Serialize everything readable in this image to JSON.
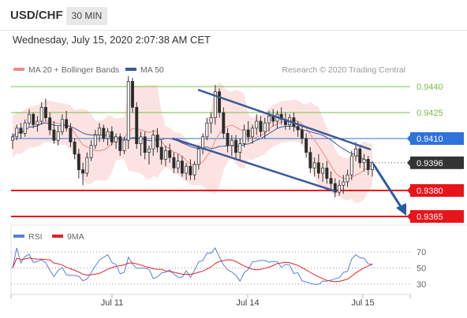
{
  "header": {
    "symbol": "USD/CHF",
    "timeframe": "30 MIN"
  },
  "date_label": "Wednesday, July 15, 2020 2:07:38 AM CET",
  "legend": {
    "ma20": "MA 20 + Bollinger Bands",
    "ma50": "MA 50",
    "credit": "Research © 2020 Trading Central"
  },
  "rsi_legend": {
    "rsi": "RSI",
    "ma": "9MA"
  },
  "colors": {
    "support": "#e8141c",
    "resistance": "#7dbb4a",
    "pivot": "#2e73d9",
    "price_box": "#333333",
    "trendline": "#3b5a9a",
    "ma20": "#f08a86",
    "ma50": "#3b5a9a",
    "rsi": "#5a7fd6",
    "rsi_ma": "#e0222b",
    "up_candle": "#4a4a4a",
    "down_candle": "#2a2a2a"
  },
  "chart_data": [
    {
      "type": "candlestick",
      "title": "USD/CHF",
      "timeframe": "30 MIN",
      "x_ticks": [
        "Jul 11",
        "Jul 14",
        "Jul 15"
      ],
      "ylim": [
        0.93595,
        0.94485
      ],
      "levels": [
        {
          "name": "resistance",
          "value": 0.944,
          "label": "0.9440"
        },
        {
          "name": "resistance",
          "value": 0.9425,
          "label": "0.9425"
        },
        {
          "name": "pivot",
          "value": 0.941,
          "label": "0.9410"
        },
        {
          "name": "current",
          "value": 0.9396,
          "label": "0.9396"
        },
        {
          "name": "support",
          "value": 0.938,
          "label": "0.9380"
        },
        {
          "name": "support",
          "value": 0.9365,
          "label": "0.9365"
        }
      ],
      "ohlc_approx": [
        [
          0.9409,
          0.9413,
          0.9404,
          0.9411
        ],
        [
          0.9411,
          0.9418,
          0.9409,
          0.9416
        ],
        [
          0.9416,
          0.9419,
          0.941,
          0.9413
        ],
        [
          0.9413,
          0.9421,
          0.9411,
          0.9419
        ],
        [
          0.9419,
          0.9427,
          0.9417,
          0.9424
        ],
        [
          0.9424,
          0.9425,
          0.9416,
          0.9418
        ],
        [
          0.9418,
          0.9423,
          0.9414,
          0.942
        ],
        [
          0.942,
          0.9431,
          0.9418,
          0.9428
        ],
        [
          0.9428,
          0.9433,
          0.942,
          0.9422
        ],
        [
          0.9422,
          0.9425,
          0.9412,
          0.9415
        ],
        [
          0.9415,
          0.942,
          0.9407,
          0.9409
        ],
        [
          0.9409,
          0.9417,
          0.9406,
          0.9414
        ],
        [
          0.9414,
          0.9424,
          0.9412,
          0.9421
        ],
        [
          0.9421,
          0.9426,
          0.9414,
          0.9416
        ],
        [
          0.9416,
          0.9419,
          0.9405,
          0.9408
        ],
        [
          0.9408,
          0.941,
          0.9398,
          0.9401
        ],
        [
          0.9401,
          0.9404,
          0.9387,
          0.9392
        ],
        [
          0.9392,
          0.9396,
          0.9383,
          0.939
        ],
        [
          0.939,
          0.9402,
          0.9388,
          0.9399
        ],
        [
          0.9399,
          0.9409,
          0.9397,
          0.9406
        ],
        [
          0.9406,
          0.9415,
          0.9404,
          0.9412
        ],
        [
          0.9412,
          0.9419,
          0.9408,
          0.9416
        ],
        [
          0.9416,
          0.9418,
          0.9408,
          0.941
        ],
        [
          0.941,
          0.9416,
          0.9406,
          0.9414
        ],
        [
          0.9414,
          0.9417,
          0.9406,
          0.9408
        ],
        [
          0.9408,
          0.9413,
          0.9404,
          0.9411
        ],
        [
          0.9411,
          0.9413,
          0.94,
          0.9403
        ],
        [
          0.9403,
          0.9411,
          0.9401,
          0.9409
        ],
        [
          0.9409,
          0.9446,
          0.9404,
          0.9443
        ],
        [
          0.9443,
          0.9445,
          0.9425,
          0.9428
        ],
        [
          0.9428,
          0.9431,
          0.9404,
          0.9407
        ],
        [
          0.9407,
          0.9414,
          0.94,
          0.9411
        ],
        [
          0.9411,
          0.9414,
          0.9398,
          0.9402
        ],
        [
          0.9402,
          0.9406,
          0.9395,
          0.9404
        ],
        [
          0.9404,
          0.9415,
          0.94,
          0.9412
        ],
        [
          0.9412,
          0.9416,
          0.9402,
          0.9405
        ],
        [
          0.9405,
          0.9409,
          0.9395,
          0.9398
        ],
        [
          0.9398,
          0.9406,
          0.9394,
          0.9403
        ],
        [
          0.9403,
          0.9407,
          0.9396,
          0.9399
        ],
        [
          0.9399,
          0.9402,
          0.939,
          0.9393
        ],
        [
          0.9393,
          0.9401,
          0.939,
          0.9397
        ],
        [
          0.9397,
          0.94,
          0.9388,
          0.939
        ],
        [
          0.939,
          0.9396,
          0.9386,
          0.9394
        ],
        [
          0.9394,
          0.9398,
          0.9386,
          0.9389
        ],
        [
          0.9389,
          0.9397,
          0.9386,
          0.9395
        ],
        [
          0.9395,
          0.9406,
          0.9392,
          0.9404
        ],
        [
          0.9404,
          0.9413,
          0.9401,
          0.9411
        ],
        [
          0.9411,
          0.9422,
          0.9409,
          0.9419
        ],
        [
          0.9419,
          0.9425,
          0.9413,
          0.9422
        ],
        [
          0.9422,
          0.9441,
          0.9418,
          0.9437
        ],
        [
          0.9437,
          0.9439,
          0.9422,
          0.9425
        ],
        [
          0.9425,
          0.9428,
          0.941,
          0.9413
        ],
        [
          0.9413,
          0.9416,
          0.9402,
          0.9406
        ],
        [
          0.9406,
          0.9412,
          0.94,
          0.9409
        ],
        [
          0.9409,
          0.9412,
          0.9398,
          0.9402
        ],
        [
          0.9402,
          0.941,
          0.9398,
          0.9407
        ],
        [
          0.9407,
          0.9418,
          0.9405,
          0.9415
        ],
        [
          0.9415,
          0.942,
          0.9408,
          0.9411
        ],
        [
          0.9411,
          0.9418,
          0.9407,
          0.9416
        ],
        [
          0.9416,
          0.9424,
          0.9412,
          0.942
        ],
        [
          0.942,
          0.9423,
          0.9411,
          0.9414
        ],
        [
          0.9414,
          0.9422,
          0.941,
          0.9419
        ],
        [
          0.9419,
          0.9426,
          0.9414,
          0.9423
        ],
        [
          0.9423,
          0.9427,
          0.9417,
          0.942
        ],
        [
          0.942,
          0.9426,
          0.9416,
          0.9424
        ],
        [
          0.9424,
          0.9428,
          0.9418,
          0.9421
        ],
        [
          0.9421,
          0.9425,
          0.9415,
          0.9418
        ],
        [
          0.9418,
          0.9424,
          0.9415,
          0.9422
        ],
        [
          0.9422,
          0.9425,
          0.9414,
          0.9417
        ],
        [
          0.9417,
          0.942,
          0.9411,
          0.9415
        ],
        [
          0.9415,
          0.9418,
          0.9407,
          0.941
        ],
        [
          0.941,
          0.9413,
          0.9399,
          0.9402
        ],
        [
          0.9402,
          0.9405,
          0.939,
          0.9393
        ],
        [
          0.9393,
          0.9399,
          0.9388,
          0.9396
        ],
        [
          0.9396,
          0.9401,
          0.9387,
          0.939
        ],
        [
          0.939,
          0.9396,
          0.9385,
          0.9393
        ],
        [
          0.9393,
          0.9397,
          0.9384,
          0.9387
        ],
        [
          0.9387,
          0.9391,
          0.9381,
          0.9384
        ],
        [
          0.9384,
          0.9387,
          0.9376,
          0.9379
        ],
        [
          0.9379,
          0.9386,
          0.9377,
          0.9383
        ],
        [
          0.9383,
          0.9389,
          0.9378,
          0.9385
        ],
        [
          0.9385,
          0.9392,
          0.9382,
          0.9389
        ],
        [
          0.9389,
          0.9403,
          0.9386,
          0.94
        ],
        [
          0.94,
          0.9408,
          0.9397,
          0.9404
        ],
        [
          0.9404,
          0.9406,
          0.9393,
          0.9396
        ],
        [
          0.9396,
          0.9401,
          0.9391,
          0.9398
        ],
        [
          0.9398,
          0.94,
          0.9389,
          0.9392
        ],
        [
          0.9392,
          0.9397,
          0.9388,
          0.9396
        ]
      ]
    },
    {
      "type": "line",
      "title": "RSI",
      "series": [
        {
          "name": "RSI"
        },
        {
          "name": "9MA"
        }
      ],
      "yticks": [
        70,
        50,
        30
      ],
      "ylim": [
        22,
        76
      ]
    }
  ]
}
